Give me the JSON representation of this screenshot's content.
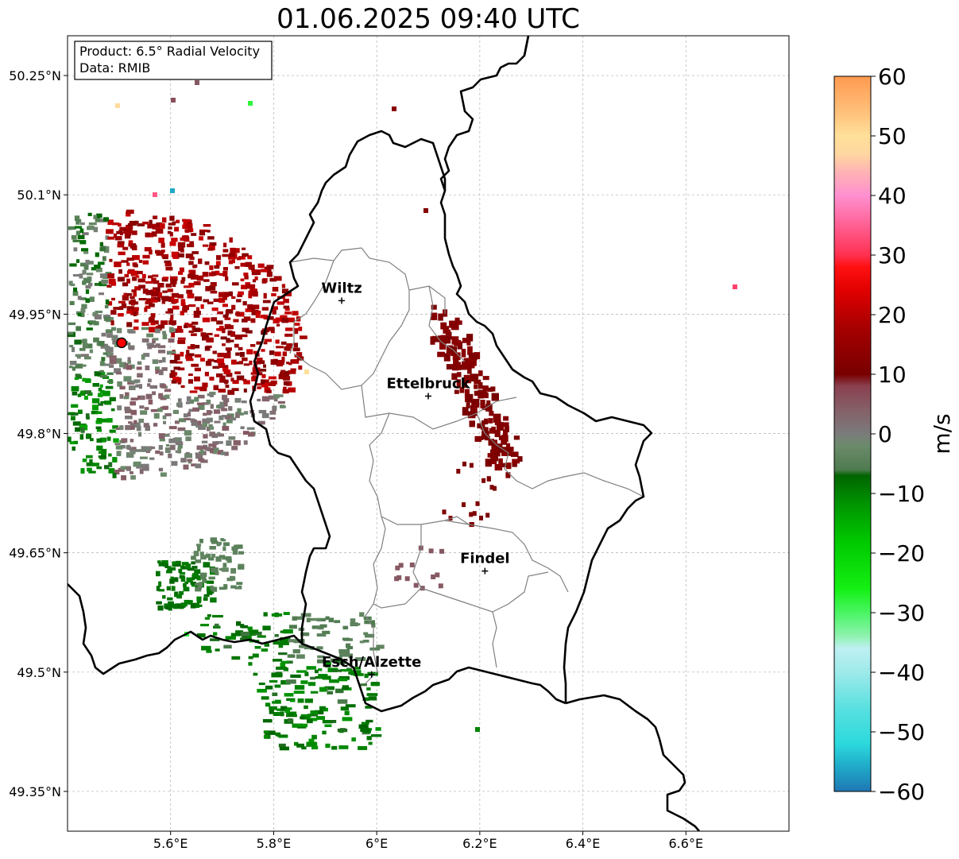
{
  "title": "01.06.2025 09:40 UTC",
  "info_box": {
    "product": "Product: 6.5° Radial Velocity",
    "data": "Data: RMIB"
  },
  "axes": {
    "lon_range": [
      5.4,
      6.8
    ],
    "lat_range": [
      49.3,
      50.3
    ],
    "x_ticks": [
      {
        "value": 5.6,
        "label": "5.6°E"
      },
      {
        "value": 5.8,
        "label": "5.8°E"
      },
      {
        "value": 6.0,
        "label": "6°E"
      },
      {
        "value": 6.2,
        "label": "6.2°E"
      },
      {
        "value": 6.4,
        "label": "6.4°E"
      },
      {
        "value": 6.6,
        "label": "6.6°E"
      }
    ],
    "y_ticks": [
      {
        "value": 50.25,
        "label": "50.25°N"
      },
      {
        "value": 50.1,
        "label": "50.1°N"
      },
      {
        "value": 49.95,
        "label": "49.95°N"
      },
      {
        "value": 49.8,
        "label": "49.8°N"
      },
      {
        "value": 49.65,
        "label": "49.65°N"
      },
      {
        "value": 49.5,
        "label": "49.5°N"
      },
      {
        "value": 49.35,
        "label": "49.35°N"
      }
    ],
    "grid": true
  },
  "cities": [
    {
      "name": "Wiltz",
      "lon": 5.932,
      "lat": 49.967
    },
    {
      "name": "Ettelbruck",
      "lon": 6.1,
      "lat": 49.847
    },
    {
      "name": "Findel",
      "lon": 6.21,
      "lat": 49.627
    },
    {
      "name": "Esch/Alzette",
      "lon": 5.99,
      "lat": 49.497
    }
  ],
  "radar_site": {
    "lon": 5.505,
    "lat": 49.914,
    "color": "#ff0000"
  },
  "colorbar": {
    "label": "m/s",
    "min": -60,
    "max": 60,
    "ticks": [
      -60,
      -50,
      -40,
      -30,
      -20,
      -10,
      0,
      10,
      20,
      30,
      40,
      50,
      60
    ],
    "tick_labels": [
      "−60",
      "−50",
      "−40",
      "−30",
      "−20",
      "−10",
      "0",
      "10",
      "20",
      "30",
      "40",
      "50",
      "60"
    ],
    "stops": [
      {
        "v": -60,
        "color": "#1f77b4"
      },
      {
        "v": -56,
        "color": "#1fa8c8"
      },
      {
        "v": -52,
        "color": "#2bd9dd"
      },
      {
        "v": -46,
        "color": "#5ae0e0"
      },
      {
        "v": -40,
        "color": "#9eeaea"
      },
      {
        "v": -36,
        "color": "#bff0f2"
      },
      {
        "v": -34,
        "color": "#90f2b0"
      },
      {
        "v": -30,
        "color": "#4af564"
      },
      {
        "v": -26,
        "color": "#14f014"
      },
      {
        "v": -18,
        "color": "#00c800"
      },
      {
        "v": -12,
        "color": "#009600"
      },
      {
        "v": -7,
        "color": "#006400"
      },
      {
        "v": -6,
        "color": "#4f7b4f"
      },
      {
        "v": -2,
        "color": "#6b8a6b"
      },
      {
        "v": 0,
        "color": "#7b7b7b"
      },
      {
        "v": 4,
        "color": "#856068"
      },
      {
        "v": 8,
        "color": "#8a4050"
      },
      {
        "v": 10,
        "color": "#780000"
      },
      {
        "v": 18,
        "color": "#a80000"
      },
      {
        "v": 24,
        "color": "#e00000"
      },
      {
        "v": 28,
        "color": "#ff1010"
      },
      {
        "v": 30,
        "color": "#ff3050"
      },
      {
        "v": 36,
        "color": "#ff6aa0"
      },
      {
        "v": 40,
        "color": "#ff90d0"
      },
      {
        "v": 44,
        "color": "#ffb4b4"
      },
      {
        "v": 47,
        "color": "#ffd7a0"
      },
      {
        "v": 50,
        "color": "#ffe09a"
      },
      {
        "v": 54,
        "color": "#ffc07a"
      },
      {
        "v": 60,
        "color": "#ff9a50"
      }
    ]
  },
  "colors": {
    "border": "#000000",
    "canton": "#808080",
    "grid": "#b0b0b0"
  }
}
